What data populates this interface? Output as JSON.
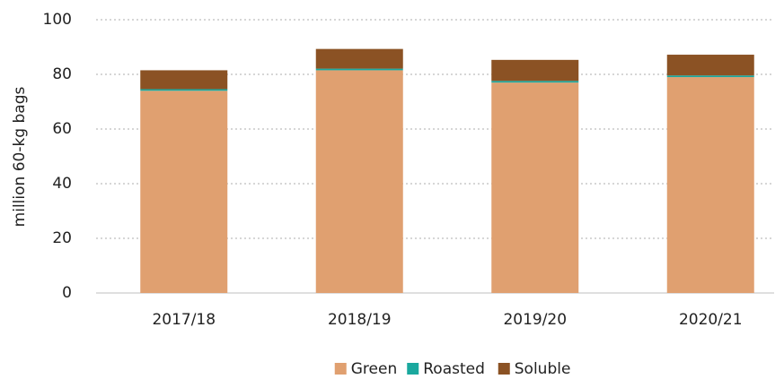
{
  "chart_data": {
    "type": "stacked_bar",
    "y_label": "million 60-kg bags",
    "categories": [
      "2017/18",
      "2018/19",
      "2019/20",
      "2020/21"
    ],
    "series": [
      {
        "name": "Green",
        "color": "#e0a070",
        "values": [
          74,
          81.5,
          77,
          79
        ]
      },
      {
        "name": "Roasted",
        "color": "#1aa89e",
        "values": [
          0.6,
          0.6,
          0.6,
          0.6
        ]
      },
      {
        "name": "Soluble",
        "color": "#8b5224",
        "values": [
          6.9,
          7.2,
          7.7,
          7.6
        ]
      }
    ],
    "ylim": [
      0,
      100
    ],
    "yticks": [
      0,
      20,
      40,
      60,
      80,
      100
    ],
    "grid": true,
    "legend": "bottom"
  }
}
